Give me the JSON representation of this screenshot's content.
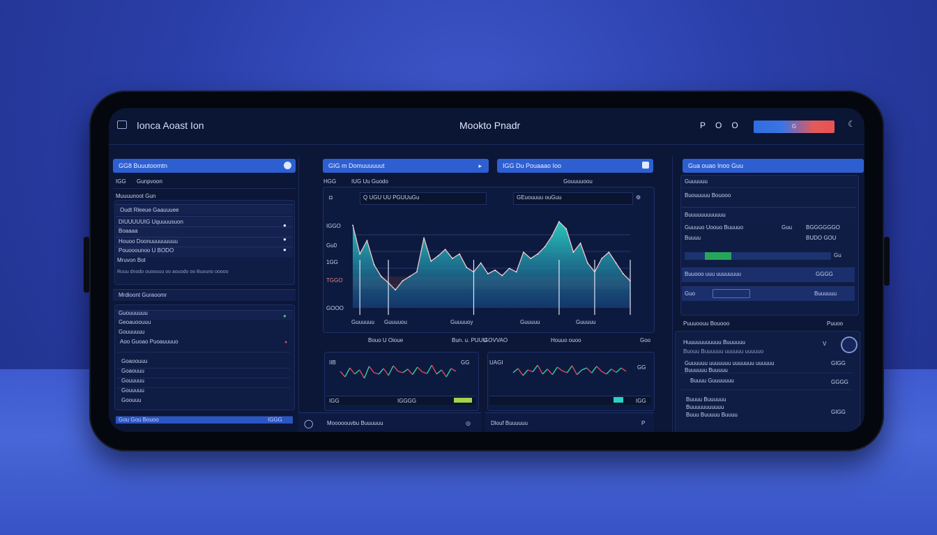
{
  "header": {
    "app_title": "Ionca Aoast Ion",
    "center_title": "Mookto Pnadr",
    "icons": [
      "P",
      "O",
      "O"
    ],
    "action_label": "G"
  },
  "left_panel": {
    "head_label": "GG8 Buuutoomtn",
    "sub_a": "IGG",
    "sub_b": "Gunpvoon",
    "section_1": "Muuuunoot Gun",
    "rows": [
      "Oudt Rleeue Gaauuuee",
      "DIUUUUUIG Uquuuusuon",
      "Boaaaa",
      "Houoo Doonuuuuuuuuu",
      "Pouooounoo U BODO"
    ],
    "row_tail": "Mruvon Bot",
    "small_line": "Ruuu dnodo ouoouuu oo aouodo oo Buouno ooooo",
    "section_2": "Mrdioont Guraoomr",
    "list_a": [
      "Guouuuuuu",
      "Geoauoouuu",
      "Gouuuuuu",
      "Aoo Guoao Puoauuuuo"
    ],
    "list_b": [
      "Goaoouuu",
      "Goaouuu",
      "Gouuuuu",
      "Gouuuuu",
      "Goouuu"
    ],
    "bottom_label": "Gou Gou Bouoo",
    "bottom_val": "IGGG"
  },
  "center": {
    "tab_1": "GIG m Domuuuuuut",
    "tab_2": "IGG Du Pouaaao Ioo",
    "sub_labels": [
      "HGG",
      "IUG Uu Guodo",
      "Gouuuuoou"
    ],
    "chart_tabs": [
      "Q UGU UU PGUUuGu",
      "GEuouuuu ouGuu"
    ],
    "y_ticks": [
      "IGGO",
      "Gu0",
      "1GG",
      "TGGO",
      "GOOO"
    ],
    "x_ticks": [
      "Guuuuuu",
      "Guuuuou",
      "Guuuuoy",
      "Guuuuu",
      "Guuuuu"
    ],
    "caption_1": "Bouo U Oioue",
    "caption_2": "Bun. u. PUUU",
    "caption_3": "GOVVAO",
    "caption_4": "Houuo ouoo",
    "caption_5": "Goo",
    "mini_1_label": "IIB",
    "mini_2_label": "UAGI",
    "mini_1_val": "GG",
    "mini_2_val": "GG",
    "mini_1_footer": [
      "IGG",
      "IGGGG"
    ],
    "mini_2_footer": [
      "IGG"
    ],
    "bottom_1": "Mooooouvbu Buuuuuu",
    "bottom_2": "Dlouf Buuuuuu"
  },
  "right_panel": {
    "head_label": "Gua ouao Inoo Guu",
    "line_1": "Guuuuuu",
    "line_2": "Buouuuuu Bouooo",
    "line_3": "Buuuuuuuuuuuu",
    "line_4": "Guuuuo Uoouo Buuuuo",
    "line_4b": "Guu",
    "line_4c": "BGGGGGGO",
    "line_5": "Buuuu",
    "line_5b": "BUDO GOU",
    "bar_val": "Gu",
    "row_a": "Buuooo uuu uuuuuuuu",
    "row_a_val": "GGGG",
    "row_b": "Guo",
    "row_b_val": "Buuuuuu",
    "section": "Puuuoouu Bouooo",
    "section_val": "Puuoo",
    "card_title": "Huuuuuuuuuuu Buuuuuu",
    "card_sub": "Buouu Buuuuuu uuuuuu uuuuuo",
    "item_1": "Guuuuuu uuuuuuu uuuuuuu uuuuuu",
    "item_1b": "Buuuuuu Buuuuu",
    "item_1_val": "GIGG",
    "item_2": "Buuuu Guuuuuuu",
    "item_2_val": "GGGG",
    "item_3": "Buuuu Buuuuuu",
    "item_3_val": "GIGG",
    "item_3b": "Buuuuuuuuuuu",
    "item_3c": "Buuu Buuuuu Buuuu"
  },
  "colors": {
    "accent": "#2e5fd1",
    "teal": "#2bd1c4",
    "red": "#e1475a",
    "green": "#2ecc71"
  },
  "chart_data": [
    {
      "type": "area",
      "x": [
        1,
        2,
        3,
        4,
        5,
        6,
        7,
        8,
        9,
        10,
        11,
        12,
        13,
        14,
        15,
        16,
        17,
        18,
        19,
        20,
        21,
        22,
        23,
        24,
        25,
        26,
        27,
        28,
        29,
        30,
        31,
        32,
        33,
        34,
        35,
        36,
        37,
        38,
        39,
        40
      ],
      "values": [
        92,
        60,
        75,
        48,
        35,
        28,
        20,
        30,
        35,
        40,
        78,
        52,
        58,
        65,
        55,
        60,
        45,
        40,
        50,
        38,
        42,
        36,
        44,
        40,
        62,
        55,
        60,
        68,
        80,
        96,
        88,
        62,
        72,
        50,
        40,
        55,
        62,
        50,
        38,
        30
      ],
      "ylim": [
        0,
        100
      ]
    },
    {
      "type": "line",
      "values": [
        50,
        30,
        62,
        40,
        55,
        25,
        68,
        45,
        40,
        60,
        35,
        70,
        50,
        45,
        58,
        38,
        65,
        48,
        42,
        72,
        40,
        55,
        30,
        60,
        50
      ],
      "ylim": [
        0,
        100
      ]
    },
    {
      "type": "line",
      "values": [
        45,
        60,
        35,
        55,
        48,
        72,
        40,
        58,
        38,
        65,
        52,
        45,
        70,
        38,
        55,
        62,
        44,
        68,
        50,
        40,
        58,
        46,
        62,
        50
      ],
      "ylim": [
        0,
        100
      ]
    }
  ]
}
